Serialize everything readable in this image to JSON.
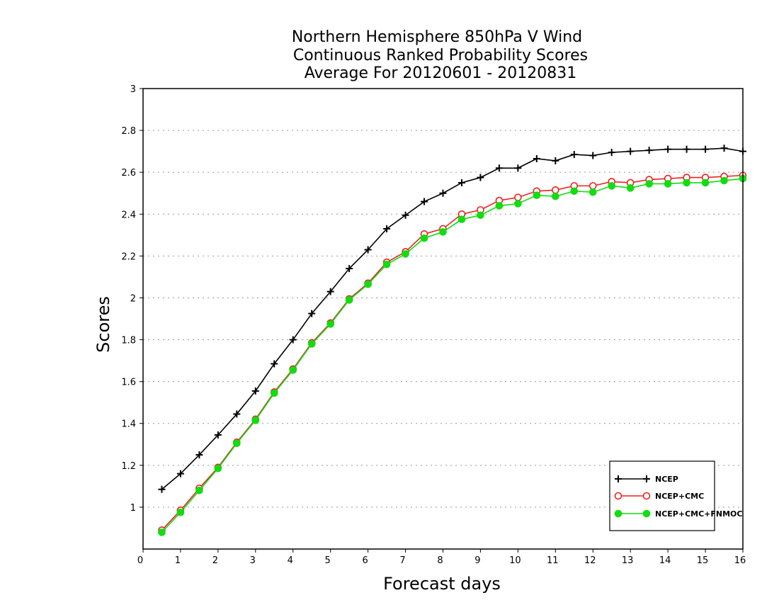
{
  "chart_data": {
    "type": "line",
    "title": [
      "Northern Hemisphere 850hPa V Wind",
      "Continuous Ranked Probability Scores",
      "Average For 20120601 - 20120831"
    ],
    "xlabel": "Forecast days",
    "ylabel": "Scores",
    "xlim": [
      0,
      16
    ],
    "ylim": [
      0.8,
      3.0
    ],
    "xticks": [
      0,
      1,
      2,
      3,
      4,
      5,
      6,
      7,
      8,
      9,
      10,
      11,
      12,
      13,
      14,
      15,
      16
    ],
    "xtick_labels": [
      "0",
      "1",
      "2",
      "3",
      "4",
      "5",
      "6",
      "7",
      "8",
      "9",
      "10",
      "11",
      "12",
      "13",
      "14",
      "15",
      "16"
    ],
    "yticks": [
      1,
      1.2,
      1.4,
      1.6,
      1.8,
      2,
      2.2,
      2.4,
      2.6,
      2.8,
      3
    ],
    "ytick_labels": [
      "1",
      "1.2",
      "1.4",
      "1.6",
      "1.8",
      "2",
      "2.2",
      "2.4",
      "2.6",
      "2.8",
      "3"
    ],
    "grid": "horizontal-dotted",
    "legend_position": "bottom-right",
    "x": [
      0.5,
      1,
      1.5,
      2,
      2.5,
      3,
      3.5,
      4,
      4.5,
      5,
      5.5,
      6,
      6.5,
      7,
      7.5,
      8,
      8.5,
      9,
      9.5,
      10,
      10.5,
      11,
      11.5,
      12,
      12.5,
      13,
      13.5,
      14,
      14.5,
      15,
      15.5,
      16
    ],
    "series": [
      {
        "name": "NCEP",
        "color": "#000000",
        "marker": "plus",
        "values": [
          1.085,
          1.16,
          1.25,
          1.345,
          1.445,
          1.555,
          1.685,
          1.8,
          1.925,
          2.03,
          2.14,
          2.23,
          2.33,
          2.395,
          2.46,
          2.5,
          2.55,
          2.575,
          2.62,
          2.62,
          2.665,
          2.655,
          2.685,
          2.68,
          2.695,
          2.7,
          2.705,
          2.71,
          2.71,
          2.71,
          2.715,
          2.7
        ]
      },
      {
        "name": "NCEP+CMC",
        "color": "#ee2222",
        "marker": "open-circle",
        "values": [
          0.89,
          0.985,
          1.09,
          1.19,
          1.31,
          1.42,
          1.55,
          1.66,
          1.785,
          1.88,
          1.995,
          2.07,
          2.17,
          2.22,
          2.305,
          2.33,
          2.4,
          2.42,
          2.465,
          2.48,
          2.51,
          2.515,
          2.535,
          2.535,
          2.555,
          2.55,
          2.565,
          2.57,
          2.575,
          2.575,
          2.58,
          2.585
        ]
      },
      {
        "name": "NCEP+CMC+FNMOC",
        "color": "#11dd11",
        "marker": "filled-circle",
        "values": [
          0.88,
          0.975,
          1.08,
          1.185,
          1.305,
          1.415,
          1.545,
          1.655,
          1.78,
          1.875,
          1.99,
          2.065,
          2.16,
          2.21,
          2.285,
          2.315,
          2.375,
          2.395,
          2.44,
          2.45,
          2.49,
          2.485,
          2.51,
          2.505,
          2.535,
          2.525,
          2.545,
          2.545,
          2.55,
          2.55,
          2.56,
          2.57
        ]
      }
    ]
  }
}
